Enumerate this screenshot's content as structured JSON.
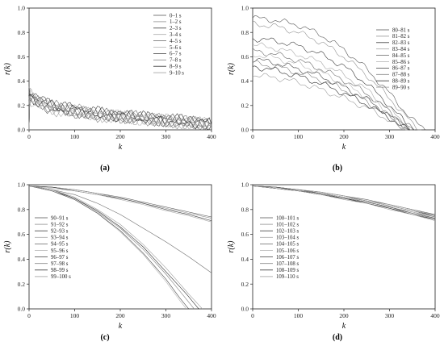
{
  "chart_data": [
    {
      "id": "a",
      "type": "line",
      "panel_label": "(a)",
      "xlabel": "k",
      "ylabel": "r(k)",
      "xlim": [
        0,
        400
      ],
      "ylim": [
        0.0,
        1.0
      ],
      "xticks": [
        "0",
        "100",
        "200",
        "300",
        "400"
      ],
      "yticks": [
        "0.0",
        "0.2",
        "0.4",
        "0.6",
        "0.8",
        "1.0"
      ],
      "legend_position": "top-right",
      "series": [
        {
          "name": "0–1 s",
          "x": [
            0,
            50,
            100,
            150,
            200,
            250,
            300,
            350,
            400
          ],
          "values": [
            0.26,
            0.17,
            0.15,
            0.12,
            0.11,
            0.09,
            0.08,
            0.06,
            0.05
          ]
        },
        {
          "name": "1–2 s",
          "x": [
            0,
            50,
            100,
            150,
            200,
            250,
            300,
            350,
            400
          ],
          "values": [
            0.3,
            0.19,
            0.16,
            0.13,
            0.1,
            0.1,
            0.07,
            0.06,
            0.04
          ]
        },
        {
          "name": "2–3 s",
          "x": [
            0,
            50,
            100,
            150,
            200,
            250,
            300,
            350,
            400
          ],
          "values": [
            0.28,
            0.2,
            0.17,
            0.14,
            0.12,
            0.1,
            0.08,
            0.07,
            0.05
          ]
        },
        {
          "name": "3–4 s",
          "x": [
            0,
            50,
            100,
            150,
            200,
            250,
            300,
            350,
            400
          ],
          "values": [
            0.25,
            0.18,
            0.15,
            0.12,
            0.11,
            0.09,
            0.08,
            0.06,
            0.04
          ]
        },
        {
          "name": "4–5 s",
          "x": [
            0,
            50,
            100,
            150,
            200,
            250,
            300,
            350,
            400
          ],
          "values": [
            0.27,
            0.19,
            0.16,
            0.13,
            0.11,
            0.1,
            0.08,
            0.06,
            0.05
          ]
        },
        {
          "name": "5–6 s",
          "x": [
            0,
            50,
            100,
            150,
            200,
            250,
            300,
            350,
            400
          ],
          "values": [
            0.24,
            0.18,
            0.15,
            0.12,
            0.1,
            0.09,
            0.07,
            0.06,
            0.04
          ]
        },
        {
          "name": "6–7 s",
          "x": [
            0,
            50,
            100,
            150,
            200,
            250,
            300,
            350,
            400
          ],
          "values": [
            0.29,
            0.2,
            0.16,
            0.13,
            0.11,
            0.1,
            0.08,
            0.07,
            0.05
          ]
        },
        {
          "name": "7–8 s",
          "x": [
            0,
            50,
            100,
            150,
            200,
            250,
            300,
            350,
            400
          ],
          "values": [
            0.26,
            0.18,
            0.15,
            0.12,
            0.11,
            0.09,
            0.07,
            0.06,
            0.04
          ]
        },
        {
          "name": "8–9 s",
          "x": [
            0,
            50,
            100,
            150,
            200,
            250,
            300,
            350,
            400
          ],
          "values": [
            0.28,
            0.19,
            0.16,
            0.13,
            0.12,
            0.1,
            0.08,
            0.07,
            0.05
          ]
        },
        {
          "name": "9–10 s",
          "x": [
            0,
            50,
            100,
            150,
            200,
            250,
            300,
            350,
            400
          ],
          "values": [
            0.25,
            0.17,
            0.15,
            0.12,
            0.1,
            0.09,
            0.07,
            0.06,
            0.04
          ]
        }
      ]
    },
    {
      "id": "b",
      "type": "line",
      "panel_label": "(b)",
      "xlabel": "k",
      "ylabel": "r(k)",
      "xlim": [
        0,
        400
      ],
      "ylim": [
        0.0,
        1.0
      ],
      "xticks": [
        "0",
        "100",
        "200",
        "300",
        "400"
      ],
      "yticks": [
        "0.0",
        "0.2",
        "0.4",
        "0.6",
        "0.8",
        "1.0"
      ],
      "legend_position": "top-right",
      "series": [
        {
          "name": "80–81 s",
          "x": [
            0,
            50,
            100,
            150,
            200,
            250,
            300,
            350,
            380
          ],
          "values": [
            0.92,
            0.9,
            0.86,
            0.78,
            0.66,
            0.5,
            0.3,
            0.08,
            0.0
          ]
        },
        {
          "name": "81–82 s",
          "x": [
            0,
            50,
            100,
            150,
            200,
            250,
            300,
            350,
            370
          ],
          "values": [
            0.87,
            0.85,
            0.8,
            0.72,
            0.6,
            0.45,
            0.26,
            0.05,
            0.0
          ]
        },
        {
          "name": "82–83 s",
          "x": [
            0,
            50,
            100,
            150,
            200,
            250,
            300,
            340,
            360
          ],
          "values": [
            0.75,
            0.73,
            0.69,
            0.62,
            0.52,
            0.38,
            0.2,
            0.04,
            0.0
          ]
        },
        {
          "name": "83–84 s",
          "x": [
            0,
            50,
            100,
            150,
            200,
            250,
            300,
            340,
            355
          ],
          "values": [
            0.7,
            0.67,
            0.62,
            0.55,
            0.45,
            0.33,
            0.17,
            0.03,
            0.0
          ]
        },
        {
          "name": "84–85 s",
          "x": [
            0,
            50,
            100,
            150,
            200,
            250,
            300,
            340,
            355
          ],
          "values": [
            0.65,
            0.62,
            0.57,
            0.5,
            0.41,
            0.3,
            0.15,
            0.03,
            0.0
          ]
        },
        {
          "name": "85–86 s",
          "x": [
            0,
            50,
            100,
            150,
            200,
            250,
            300,
            335,
            350
          ],
          "values": [
            0.62,
            0.59,
            0.54,
            0.47,
            0.38,
            0.27,
            0.13,
            0.02,
            0.0
          ]
        },
        {
          "name": "86–87 s",
          "x": [
            0,
            50,
            100,
            150,
            200,
            250,
            300,
            335,
            350
          ],
          "values": [
            0.58,
            0.55,
            0.5,
            0.44,
            0.35,
            0.25,
            0.12,
            0.02,
            0.0
          ]
        },
        {
          "name": "87–88 s",
          "x": [
            0,
            50,
            100,
            150,
            200,
            250,
            300,
            330,
            345
          ],
          "values": [
            0.55,
            0.52,
            0.47,
            0.41,
            0.33,
            0.23,
            0.11,
            0.02,
            0.0
          ]
        },
        {
          "name": "88–89 s",
          "x": [
            0,
            50,
            100,
            150,
            200,
            250,
            300,
            330,
            345
          ],
          "values": [
            0.52,
            0.49,
            0.44,
            0.38,
            0.3,
            0.21,
            0.1,
            0.02,
            0.0
          ]
        },
        {
          "name": "89–90 s",
          "x": [
            0,
            50,
            100,
            150,
            200,
            250,
            300,
            325,
            340
          ],
          "values": [
            0.45,
            0.43,
            0.39,
            0.33,
            0.26,
            0.18,
            0.08,
            0.01,
            0.0
          ]
        }
      ]
    },
    {
      "id": "c",
      "type": "line",
      "panel_label": "(c)",
      "xlabel": "k",
      "ylabel": "r(k)",
      "xlim": [
        0,
        400
      ],
      "ylim": [
        0.0,
        1.0
      ],
      "xticks": [
        "0",
        "100",
        "200",
        "300",
        "400"
      ],
      "yticks": [
        "0.0",
        "0.2",
        "0.4",
        "0.6",
        "0.8",
        "1.0"
      ],
      "legend_position": "center-left",
      "series": [
        {
          "name": "90–91 s",
          "x": [
            0,
            50,
            100,
            150,
            200,
            250,
            300,
            350,
            400
          ],
          "values": [
            0.99,
            0.98,
            0.96,
            0.93,
            0.9,
            0.86,
            0.82,
            0.78,
            0.74
          ]
        },
        {
          "name": "91–92 s",
          "x": [
            0,
            50,
            100,
            150,
            200,
            250,
            300,
            350,
            400
          ],
          "values": [
            0.99,
            0.98,
            0.96,
            0.93,
            0.89,
            0.85,
            0.81,
            0.77,
            0.73
          ]
        },
        {
          "name": "92–93 s",
          "x": [
            0,
            50,
            100,
            150,
            200,
            250,
            300,
            350,
            400
          ],
          "values": [
            0.99,
            0.98,
            0.95,
            0.92,
            0.89,
            0.85,
            0.8,
            0.76,
            0.71
          ]
        },
        {
          "name": "93–94 s",
          "x": [
            0,
            50,
            100,
            150,
            200,
            250,
            300,
            350,
            400
          ],
          "values": [
            0.99,
            0.97,
            0.95,
            0.92,
            0.88,
            0.84,
            0.79,
            0.75,
            0.7
          ]
        },
        {
          "name": "94–95 s",
          "x": [
            0,
            50,
            100,
            150,
            200,
            250,
            300,
            350,
            400
          ],
          "values": [
            0.99,
            0.96,
            0.92,
            0.85,
            0.76,
            0.65,
            0.54,
            0.42,
            0.29
          ]
        },
        {
          "name": "95–96 s",
          "x": [
            0,
            50,
            100,
            150,
            200,
            250,
            300,
            330,
            345
          ],
          "values": [
            0.99,
            0.95,
            0.88,
            0.77,
            0.62,
            0.44,
            0.22,
            0.07,
            0.0
          ]
        },
        {
          "name": "96–97 s",
          "x": [
            0,
            50,
            100,
            150,
            200,
            250,
            300,
            330,
            350
          ],
          "values": [
            0.99,
            0.95,
            0.88,
            0.77,
            0.63,
            0.45,
            0.24,
            0.09,
            0.0
          ]
        },
        {
          "name": "97–98 s",
          "x": [
            0,
            50,
            100,
            150,
            200,
            250,
            300,
            340,
            362
          ],
          "values": [
            0.99,
            0.95,
            0.89,
            0.78,
            0.65,
            0.48,
            0.28,
            0.1,
            0.0
          ]
        },
        {
          "name": "98–99 s",
          "x": [
            0,
            50,
            100,
            150,
            200,
            250,
            300,
            345,
            372
          ],
          "values": [
            0.99,
            0.96,
            0.89,
            0.79,
            0.66,
            0.5,
            0.3,
            0.12,
            0.0
          ]
        },
        {
          "name": "99–100 s",
          "x": [
            0,
            50,
            100,
            150,
            200,
            250,
            300,
            350,
            380
          ],
          "values": [
            0.99,
            0.96,
            0.9,
            0.8,
            0.68,
            0.52,
            0.33,
            0.12,
            0.0
          ]
        }
      ]
    },
    {
      "id": "d",
      "type": "line",
      "panel_label": "(d)",
      "xlabel": "k",
      "ylabel": "r(k)",
      "xlim": [
        0,
        400
      ],
      "ylim": [
        0.0,
        1.0
      ],
      "xticks": [
        "0",
        "100",
        "200",
        "300",
        "400"
      ],
      "yticks": [
        "0.0",
        "0.2",
        "0.4",
        "0.6",
        "0.8",
        "1.0"
      ],
      "legend_position": "center-left",
      "series": [
        {
          "name": "100–101 s",
          "x": [
            0,
            50,
            100,
            150,
            200,
            250,
            300,
            350,
            400
          ],
          "values": [
            0.99,
            0.98,
            0.96,
            0.94,
            0.91,
            0.88,
            0.84,
            0.8,
            0.76
          ]
        },
        {
          "name": "101–102 s",
          "x": [
            0,
            50,
            100,
            150,
            200,
            250,
            300,
            350,
            400
          ],
          "values": [
            0.99,
            0.98,
            0.96,
            0.94,
            0.91,
            0.87,
            0.84,
            0.8,
            0.75
          ]
        },
        {
          "name": "102–103 s",
          "x": [
            0,
            50,
            100,
            150,
            200,
            250,
            300,
            350,
            400
          ],
          "values": [
            0.99,
            0.98,
            0.96,
            0.93,
            0.9,
            0.87,
            0.83,
            0.79,
            0.75
          ]
        },
        {
          "name": "103–104 s",
          "x": [
            0,
            50,
            100,
            150,
            200,
            250,
            300,
            350,
            400
          ],
          "values": [
            0.99,
            0.98,
            0.96,
            0.93,
            0.9,
            0.87,
            0.83,
            0.79,
            0.74
          ]
        },
        {
          "name": "104–105 s",
          "x": [
            0,
            50,
            100,
            150,
            200,
            250,
            300,
            350,
            400
          ],
          "values": [
            0.99,
            0.98,
            0.96,
            0.93,
            0.9,
            0.86,
            0.82,
            0.78,
            0.74
          ]
        },
        {
          "name": "105–106 s",
          "x": [
            0,
            50,
            100,
            150,
            200,
            250,
            300,
            350,
            400
          ],
          "values": [
            0.99,
            0.98,
            0.95,
            0.93,
            0.9,
            0.86,
            0.82,
            0.78,
            0.73
          ]
        },
        {
          "name": "106–107 s",
          "x": [
            0,
            50,
            100,
            150,
            200,
            250,
            300,
            350,
            400
          ],
          "values": [
            0.99,
            0.98,
            0.95,
            0.93,
            0.89,
            0.86,
            0.82,
            0.77,
            0.73
          ]
        },
        {
          "name": "107–108 s",
          "x": [
            0,
            50,
            100,
            150,
            200,
            250,
            300,
            350,
            400
          ],
          "values": [
            0.99,
            0.97,
            0.95,
            0.92,
            0.89,
            0.85,
            0.81,
            0.77,
            0.72
          ]
        },
        {
          "name": "108–109 s",
          "x": [
            0,
            50,
            100,
            150,
            200,
            250,
            300,
            350,
            400
          ],
          "values": [
            0.99,
            0.97,
            0.95,
            0.92,
            0.89,
            0.85,
            0.81,
            0.76,
            0.72
          ]
        },
        {
          "name": "109–110 s",
          "x": [
            0,
            50,
            100,
            150,
            200,
            250,
            300,
            350,
            400
          ],
          "values": [
            0.99,
            0.97,
            0.95,
            0.92,
            0.88,
            0.85,
            0.8,
            0.76,
            0.71
          ]
        }
      ]
    }
  ]
}
